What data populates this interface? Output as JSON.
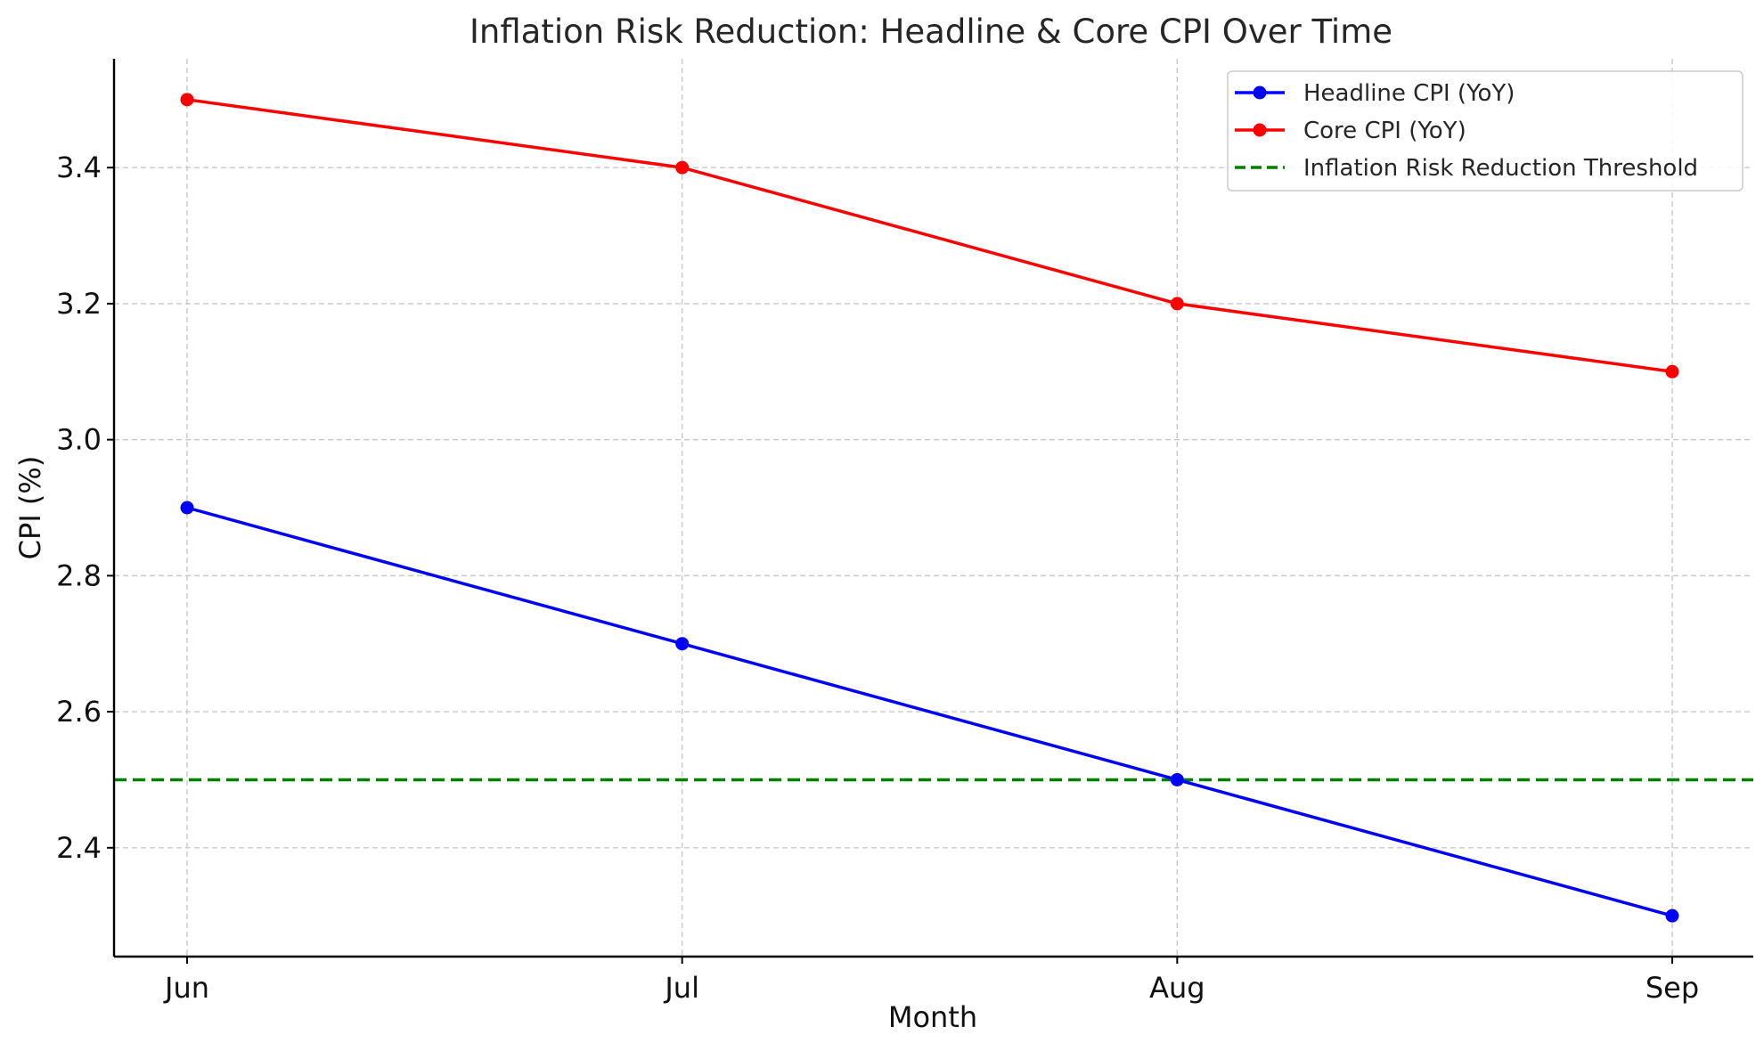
{
  "chart_data": {
    "type": "line",
    "title": "Inflation Risk Reduction: Headline & Core CPI Over Time",
    "xlabel": "Month",
    "ylabel": "CPI (%)",
    "categories": [
      "Jun",
      "Jul",
      "Aug",
      "Sep"
    ],
    "ylim": [
      2.24,
      3.56
    ],
    "yticks": [
      2.4,
      2.6,
      2.8,
      3.0,
      3.2,
      3.4
    ],
    "ytick_labels": [
      "2.4",
      "2.6",
      "2.8",
      "3.0",
      "3.2",
      "3.4"
    ],
    "grid": true,
    "legend_position": "top-right",
    "series": [
      {
        "name": "Headline CPI (YoY)",
        "color": "#0000ff",
        "marker": "circle",
        "values": [
          2.9,
          2.7,
          2.5,
          2.3
        ]
      },
      {
        "name": "Core CPI (YoY)",
        "color": "#ff0000",
        "marker": "circle",
        "values": [
          3.5,
          3.4,
          3.2,
          3.1
        ]
      }
    ],
    "reference_lines": [
      {
        "name": "Inflation Risk Reduction Threshold",
        "value": 2.5,
        "color": "#008000",
        "style": "dashed"
      }
    ]
  }
}
